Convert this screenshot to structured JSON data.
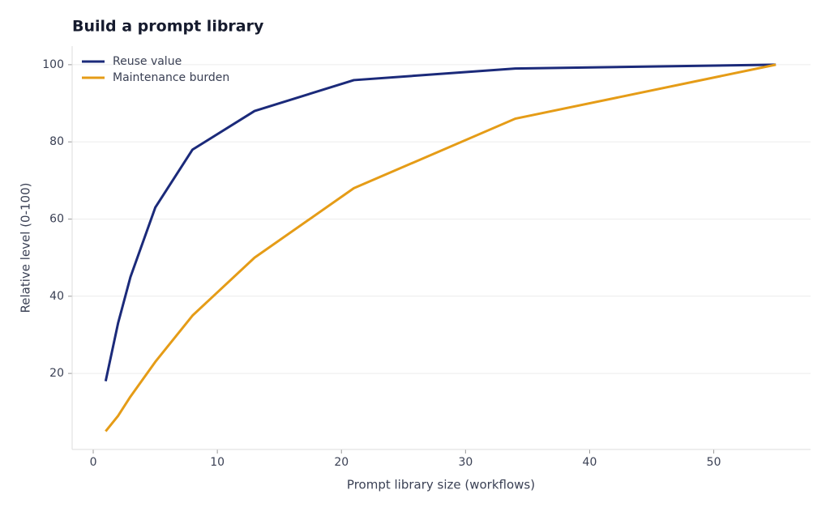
{
  "chart_data": {
    "type": "line",
    "title": "Build a prompt library",
    "x_label": "Prompt library size (workflows)",
    "y_label": "Relative level (0-100)",
    "x": [
      1,
      2,
      3,
      5,
      8,
      13,
      21,
      34,
      55
    ],
    "series": [
      {
        "name": "Reuse value",
        "color": "#1b2a7a",
        "values": [
          18,
          33,
          45,
          63,
          78,
          88,
          96,
          99,
          100
        ]
      },
      {
        "name": "Maintenance burden",
        "color": "#e59c17",
        "values": [
          5,
          9,
          14,
          23,
          35,
          50,
          68,
          86,
          100
        ]
      }
    ],
    "xlim": [
      -1.7,
      57.8
    ],
    "xticks": [
      0,
      10,
      20,
      30,
      40,
      50
    ],
    "ylim": [
      0.3,
      104.8
    ],
    "yticks": [
      20,
      40,
      60,
      80,
      100
    ],
    "grid": true,
    "legend": "upper-left"
  }
}
